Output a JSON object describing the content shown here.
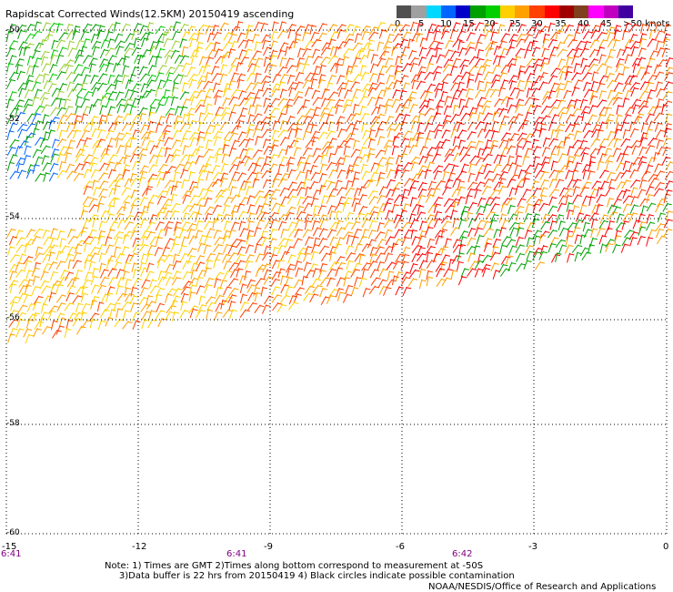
{
  "title": "Rapidscat Corrected Winds(12.5KM) 20150419 ascending",
  "legend": {
    "colors": [
      "#505050",
      "#a0a0a0",
      "#00d8ff",
      "#0064ff",
      "#0000c8",
      "#00a000",
      "#00d000",
      "#ffd000",
      "#ffa000",
      "#ff4000",
      "#ff0000",
      "#a00000",
      "#804020",
      "#ff00ff",
      "#c000c0",
      "#4000a0"
    ],
    "labels": [
      "0",
      "5",
      "10",
      "15",
      "20",
      "25",
      "30",
      "35",
      "40",
      "45",
      ">50 knots"
    ]
  },
  "axes": {
    "lat_labels": [
      "-50",
      "-52",
      "-54",
      "-56",
      "-58",
      "-60"
    ],
    "lon_labels": [
      "-15",
      "-12",
      "-9",
      "-6",
      "-3",
      "0"
    ],
    "times": [
      "6:41",
      "6:41",
      "6:42"
    ]
  },
  "notes": {
    "line1": "Note: 1) Times are GMT 2)Times along bottom correspond to measurement at -50S",
    "line2": "3)Data buffer is 22 hrs from 20150419 4) Black circles indicate possible contamination",
    "credit": "NOAA/NESDIS/Office of Research and Applications"
  },
  "map_data": {
    "lat_range": [
      -60,
      -50
    ],
    "lon_range": [
      -15,
      0
    ],
    "wind_regions": [
      {
        "area": "north-west",
        "speed_knots": "15-20",
        "color": "#00a000"
      },
      {
        "area": "west coast",
        "speed_knots": "10-15",
        "color": "#0064ff"
      },
      {
        "area": "central",
        "speed_knots": "20-25",
        "color": "#ffd000"
      },
      {
        "area": "east",
        "speed_knots": "25-35",
        "color": "#ff0000"
      }
    ]
  }
}
